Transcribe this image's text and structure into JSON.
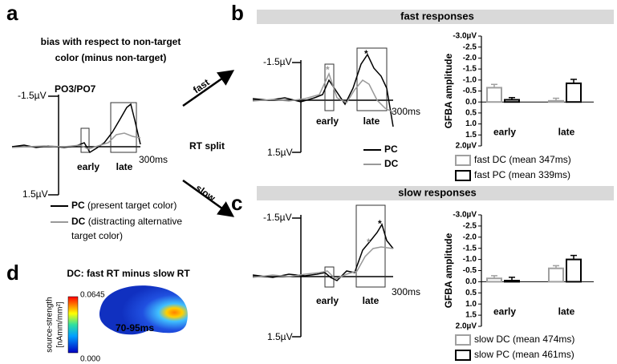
{
  "panel_a": {
    "label": "a",
    "title_1": "bias with respect to non-target",
    "title_2": "color (minus non-target)",
    "channel": "PO3/PO7",
    "y_top": "-1.5µV",
    "y_bottom": "1.5µV",
    "x_end": "300ms",
    "early": "early",
    "late": "late",
    "legend_pc_1": "PC",
    "legend_pc_2": "(present target color)",
    "legend_dc_1": "DC",
    "legend_dc_2": "(distracting alternative",
    "legend_dc_3": "target color)"
  },
  "arrows": {
    "fast": "fast",
    "slow": "slow",
    "split": "RT split"
  },
  "panel_b": {
    "label": "b",
    "header": "fast responses",
    "y_top": "-1.5µV",
    "y_bottom": "1.5µV",
    "x_end": "300ms",
    "early": "early",
    "late": "late",
    "legend_pc": "PC",
    "legend_dc": "DC"
  },
  "panel_c": {
    "label": "c",
    "header": "slow responses",
    "y_top": "-1.5µV",
    "y_bottom": "1.5µV",
    "x_end": "300ms",
    "early": "early",
    "late": "late"
  },
  "panel_d": {
    "label": "d",
    "title": "DC: fast RT minus slow RT",
    "scale_max": "0.0645",
    "scale_min": "0.000",
    "scale_label_1": "source-strength",
    "scale_label_2": "[nAmm/mm²]",
    "time": "70-95ms"
  },
  "chart_data": [
    {
      "type": "bar",
      "ylabel": "GFBA amplitude",
      "categories": [
        "early",
        "late"
      ],
      "series": [
        {
          "name": "fast DC (mean 347ms)",
          "color": "#a0a0a0",
          "values": [
            -0.65,
            -0.05
          ],
          "errors": [
            0.15,
            0.12
          ]
        },
        {
          "name": "fast PC (mean 339ms)",
          "color": "#000000",
          "values": [
            -0.1,
            -0.85
          ],
          "errors": [
            0.1,
            0.18
          ]
        }
      ],
      "ylim": [
        2,
        -3
      ],
      "yticks": [
        {
          "value": -3,
          "label": "-3.0µV"
        },
        -2.5,
        {
          "value": -2,
          "label": "-2.0"
        },
        -1.5,
        {
          "value": -1,
          "label": "-1.0"
        },
        -0.5,
        {
          "value": 0,
          "label": "0.0"
        },
        0.5,
        {
          "value": 1,
          "label": "1.0"
        },
        1.5,
        {
          "value": 2,
          "label": "2.0µV"
        }
      ]
    },
    {
      "type": "bar",
      "ylabel": "GFBA amplitude",
      "categories": [
        "early",
        "late"
      ],
      "series": [
        {
          "name": "slow DC (mean 474ms)",
          "color": "#a0a0a0",
          "values": [
            -0.15,
            -0.6
          ],
          "errors": [
            0.12,
            0.12
          ]
        },
        {
          "name": "slow PC (mean 461ms)",
          "color": "#000000",
          "values": [
            -0.05,
            -1.0
          ],
          "errors": [
            0.15,
            0.18
          ]
        }
      ],
      "ylim": [
        2,
        -3
      ],
      "yticks": [
        {
          "value": -3,
          "label": "-3.0µV"
        },
        -2.5,
        {
          "value": -2,
          "label": "-2.0"
        },
        -1.5,
        {
          "value": -1,
          "label": "-1.0"
        },
        -0.5,
        {
          "value": 0,
          "label": "0.0"
        },
        0.5,
        {
          "value": 1,
          "label": "1.0"
        },
        1.5,
        {
          "value": 2,
          "label": "2.0µV"
        }
      ]
    }
  ]
}
